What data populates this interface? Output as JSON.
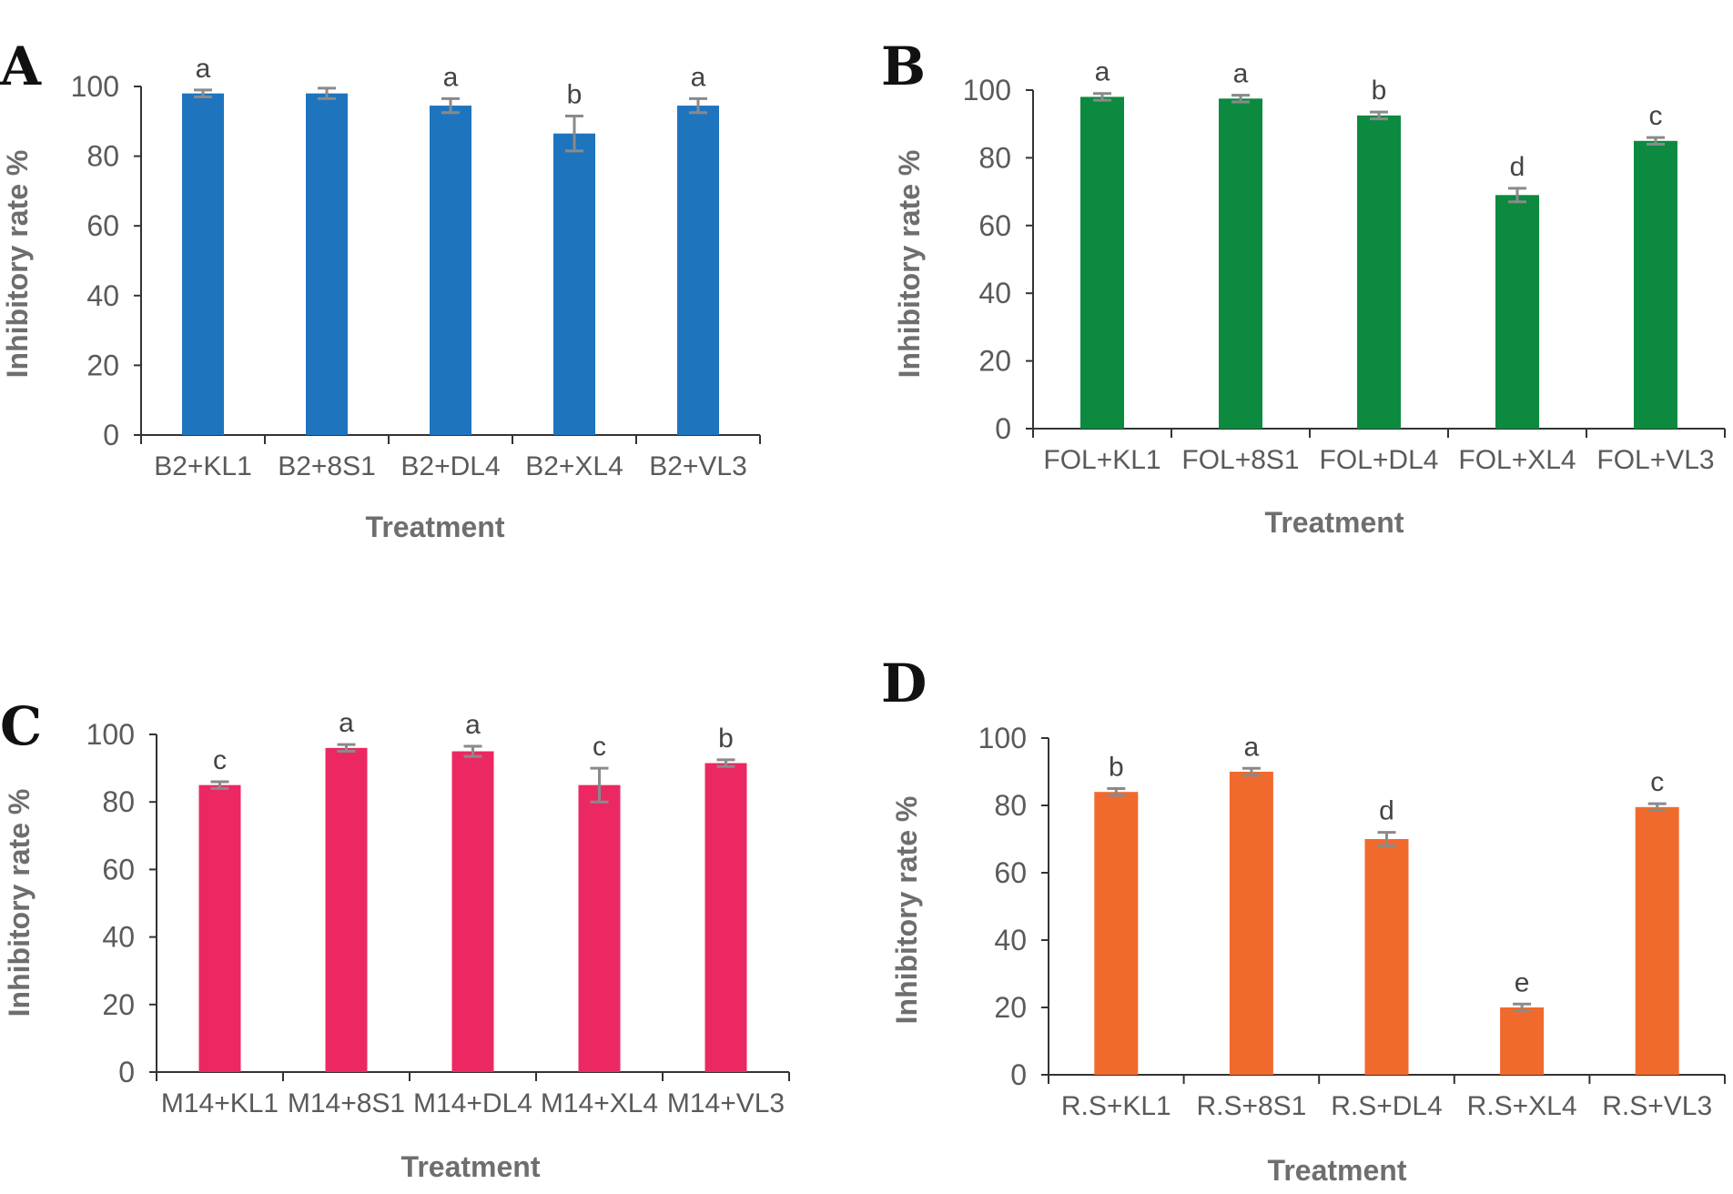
{
  "chart_data": [
    {
      "type": "bar",
      "panel": "A",
      "categories": [
        "B2+KL1",
        "B2+8S1",
        "B2+DL4",
        "B2+XL4",
        "B2+VL3"
      ],
      "values": [
        98,
        98,
        94.5,
        86.5,
        94.5
      ],
      "errors": [
        1.0,
        1.5,
        2.0,
        5.0,
        2.0
      ],
      "letters": [
        "a",
        "",
        "a",
        "b",
        "a"
      ],
      "xlabel": "Treatment",
      "ylabel": "Inhibitory rate %",
      "ylim": [
        0,
        100
      ],
      "yticks": [
        0,
        20,
        40,
        60,
        80,
        100
      ],
      "color": "#1f74be"
    },
    {
      "type": "bar",
      "panel": "B",
      "categories": [
        "FOL+KL1",
        "FOL+8S1",
        "FOL+DL4",
        "FOL+XL4",
        "FOL+VL3"
      ],
      "values": [
        98,
        97.5,
        92.5,
        69,
        85
      ],
      "errors": [
        1.0,
        1.0,
        1.0,
        2.0,
        1.0
      ],
      "letters": [
        "a",
        "a",
        "b",
        "d",
        "c"
      ],
      "xlabel": "Treatment",
      "ylabel": "Inhibitory rate %",
      "ylim": [
        0,
        100
      ],
      "yticks": [
        0,
        20,
        40,
        60,
        80,
        100
      ],
      "color": "#0c8a3f"
    },
    {
      "type": "bar",
      "panel": "C",
      "categories": [
        "M14+KL1",
        "M14+8S1",
        "M14+DL4",
        "M14+XL4",
        "M14+VL3"
      ],
      "values": [
        85,
        96,
        95,
        85,
        91.5
      ],
      "errors": [
        1.0,
        1.0,
        1.5,
        5.0,
        1.0
      ],
      "letters": [
        "c",
        "a",
        "a",
        "c",
        "b"
      ],
      "xlabel": "Treatment",
      "ylabel": "Inhibitory rate %",
      "ylim": [
        0,
        100
      ],
      "yticks": [
        0,
        20,
        40,
        60,
        80,
        100
      ],
      "color": "#ec2862"
    },
    {
      "type": "bar",
      "panel": "D",
      "categories": [
        "R.S+KL1",
        "R.S+8S1",
        "R.S+DL4",
        "R.S+XL4",
        "R.S+VL3"
      ],
      "values": [
        84,
        90,
        70,
        20,
        79.5
      ],
      "errors": [
        1.0,
        1.0,
        2.0,
        1.0,
        1.0
      ],
      "letters": [
        "b",
        "a",
        "d",
        "e",
        "c"
      ],
      "xlabel": "Treatment",
      "ylabel": "Inhibitory rate %",
      "ylim": [
        0,
        100
      ],
      "yticks": [
        0,
        20,
        40,
        60,
        80,
        100
      ],
      "color": "#f16a2d"
    }
  ]
}
